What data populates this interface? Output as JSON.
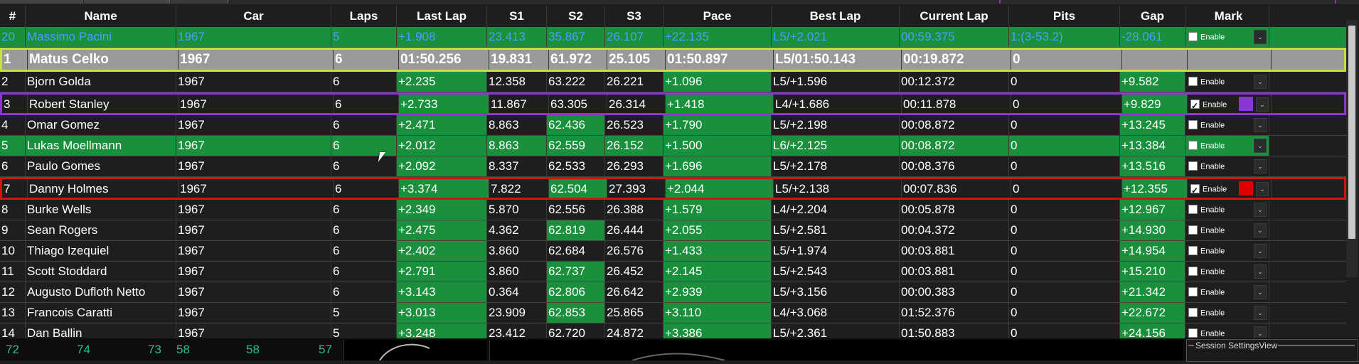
{
  "columns": [
    "#",
    "Name",
    "Car",
    "Laps",
    "Last Lap",
    "S1",
    "S2",
    "S3",
    "Pace",
    "Best Lap",
    "Current Lap",
    "Pits",
    "Gap",
    "Mark"
  ],
  "enable_label": "Enable",
  "rows": [
    {
      "pos": "20",
      "name": "Massimo Pacini",
      "car": "1967",
      "laps": "5",
      "last": "+1.908",
      "s1": "23.413",
      "s2": "35.867",
      "s3": "26.107",
      "pace": "+22.135",
      "best": "L5/+2.021",
      "cur": "00:59.375",
      "pits": "1:(3-53.2)",
      "gap": "-28.061",
      "checked": false,
      "style": "blue"
    },
    {
      "pos": "1",
      "name": "Matus Celko",
      "car": "1967",
      "laps": "6",
      "last": "01:50.256",
      "s1": "19.831",
      "s2": "61.972",
      "s3": "25.105",
      "pace": "01:50.897",
      "best": "L5/01:50.143",
      "cur": "00:19.872",
      "pits": "0",
      "gap": "",
      "style": "top"
    },
    {
      "pos": "2",
      "name": "Bjorn Golda",
      "car": "1967",
      "laps": "6",
      "last": "+2.235",
      "s1": "12.358",
      "s2": "63.222",
      "s3": "26.221",
      "pace": "+1.096",
      "best": "L5/+1.596",
      "cur": "00:12.372",
      "pits": "0",
      "gap": "+9.582",
      "checked": false,
      "style": "normal"
    },
    {
      "pos": "3",
      "name": "Robert Stanley",
      "car": "1967",
      "laps": "6",
      "last": "+2.733",
      "s1": "11.867",
      "s2": "63.305",
      "s3": "26.314",
      "pace": "+1.418",
      "best": "L4/+1.686",
      "cur": "00:11.878",
      "pits": "0",
      "gap": "+9.829",
      "checked": true,
      "mark_color": "#8a35d4",
      "style": "purple"
    },
    {
      "pos": "4",
      "name": "Omar Gomez",
      "car": "1967",
      "laps": "6",
      "last": "+2.471",
      "s1": "8.863",
      "s2": "62.436",
      "s3": "26.523",
      "pace": "+1.790",
      "best": "L5/+2.198",
      "cur": "00:08.872",
      "pits": "0",
      "gap": "+13.245",
      "checked": false,
      "style": "normal",
      "s2g": true
    },
    {
      "pos": "5",
      "name": "Lukas Moellmann",
      "car": "1967",
      "laps": "6",
      "last": "+2.012",
      "s1": "8.863",
      "s2": "62.559",
      "s3": "26.152",
      "pace": "+1.500",
      "best": "L6/+2.125",
      "cur": "00:08.872",
      "pits": "0",
      "gap": "+13.384",
      "checked": false,
      "style": "green"
    },
    {
      "pos": "6",
      "name": "Paulo Gomes",
      "car": "1967",
      "laps": "6",
      "last": "+2.092",
      "s1": "8.337",
      "s2": "62.533",
      "s3": "26.293",
      "pace": "+1.696",
      "best": "L5/+2.178",
      "cur": "00:08.376",
      "pits": "0",
      "gap": "+13.516",
      "checked": false,
      "style": "normal"
    },
    {
      "pos": "7",
      "name": "Danny Holmes",
      "car": "1967",
      "laps": "6",
      "last": "+3.374",
      "s1": "7.822",
      "s2": "62.504",
      "s3": "27.393",
      "pace": "+2.044",
      "best": "L5/+2.138",
      "cur": "00:07.836",
      "pits": "0",
      "gap": "+12.355",
      "checked": true,
      "mark_color": "#e00000",
      "style": "red",
      "s2g": true
    },
    {
      "pos": "8",
      "name": "Burke Wells",
      "car": "1967",
      "laps": "6",
      "last": "+2.349",
      "s1": "5.870",
      "s2": "62.556",
      "s3": "26.388",
      "pace": "+1.579",
      "best": "L4/+2.204",
      "cur": "00:05.878",
      "pits": "0",
      "gap": "+12.967",
      "checked": false,
      "style": "normal"
    },
    {
      "pos": "9",
      "name": "Sean Rogers",
      "car": "1967",
      "laps": "6",
      "last": "+2.475",
      "s1": "4.362",
      "s2": "62.819",
      "s3": "26.444",
      "pace": "+2.055",
      "best": "L5/+2.581",
      "cur": "00:04.372",
      "pits": "0",
      "gap": "+14.930",
      "checked": false,
      "style": "normal",
      "s2g": true
    },
    {
      "pos": "10",
      "name": "Thiago Izequiel",
      "car": "1967",
      "laps": "6",
      "last": "+2.402",
      "s1": "3.860",
      "s2": "62.684",
      "s3": "26.576",
      "pace": "+1.433",
      "best": "L5/+1.974",
      "cur": "00:03.881",
      "pits": "0",
      "gap": "+14.954",
      "checked": false,
      "style": "normal"
    },
    {
      "pos": "11",
      "name": "Scott Stoddard",
      "car": "1967",
      "laps": "6",
      "last": "+2.791",
      "s1": "3.860",
      "s2": "62.737",
      "s3": "26.452",
      "pace": "+2.145",
      "best": "L5/+2.543",
      "cur": "00:03.881",
      "pits": "0",
      "gap": "+15.210",
      "checked": false,
      "style": "normal",
      "s2g": true
    },
    {
      "pos": "12",
      "name": "Augusto Dufloth Netto",
      "car": "1967",
      "laps": "6",
      "last": "+3.143",
      "s1": "0.364",
      "s2": "62.806",
      "s3": "26.642",
      "pace": "+2.939",
      "best": "L5/+3.156",
      "cur": "00:00.383",
      "pits": "0",
      "gap": "+21.342",
      "checked": false,
      "style": "normal",
      "s2g": true
    },
    {
      "pos": "13",
      "name": "Francois Caratti",
      "car": "1967",
      "laps": "5",
      "last": "+3.013",
      "s1": "23.909",
      "s2": "62.853",
      "s3": "25.865",
      "pace": "+3.110",
      "best": "L4/+3.068",
      "cur": "01:52.376",
      "pits": "0",
      "gap": "+22.672",
      "checked": false,
      "style": "normal",
      "s2g": true
    },
    {
      "pos": "14",
      "name": "Dan Ballin",
      "car": "1967",
      "laps": "5",
      "last": "+3.248",
      "s1": "23.412",
      "s2": "62.720",
      "s3": "24.872",
      "pace": "+3.386",
      "best": "L5/+2.361",
      "cur": "01:50.883",
      "pits": "0",
      "gap": "+24.156",
      "checked": false,
      "style": "normal"
    }
  ],
  "bottom": {
    "n1": "72",
    "n2": "74",
    "n3": "73",
    "n4": "58",
    "n5": "58",
    "n6": "57",
    "session_tab": "Session SettingsView"
  },
  "colors": {
    "green": "#1a8f3c",
    "purple": "#8a35d4",
    "red": "#d31212",
    "top_border": "#c3e23a"
  }
}
